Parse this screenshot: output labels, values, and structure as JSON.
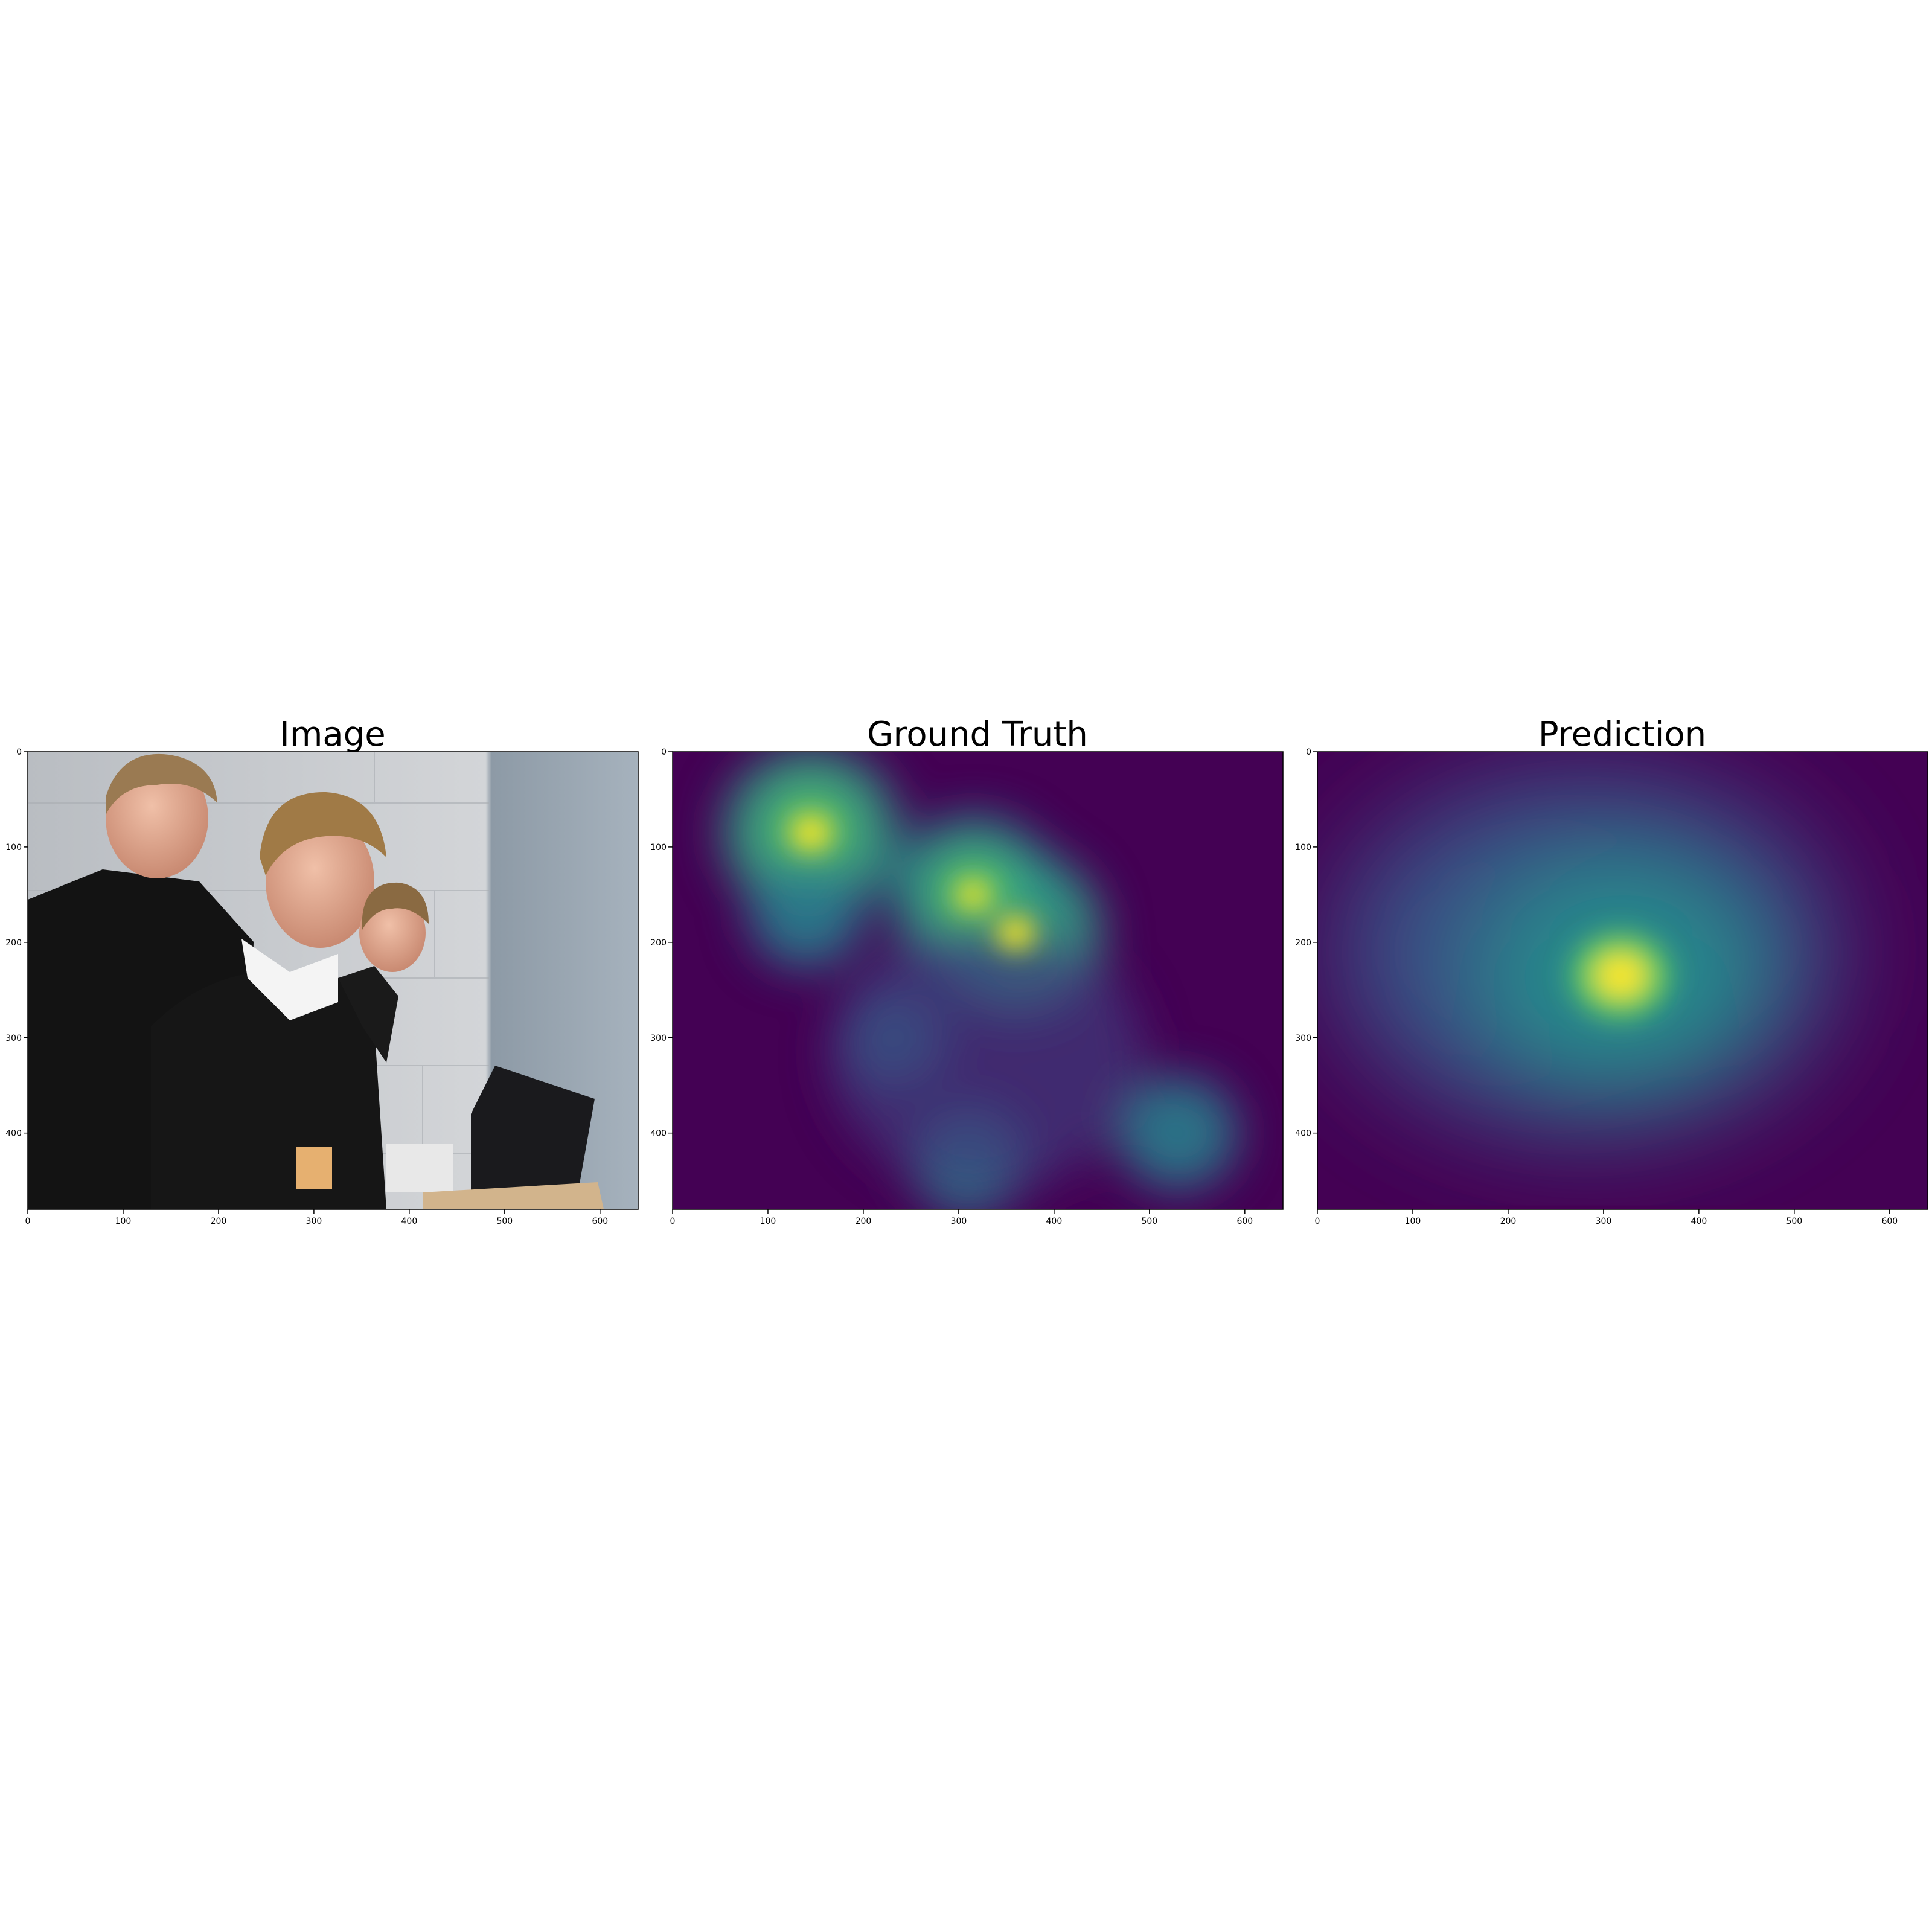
{
  "chart_data": [
    {
      "type": "image",
      "title": "Image",
      "x_ticks": [
        0,
        100,
        200,
        300,
        400,
        500,
        600
      ],
      "y_ticks": [
        0,
        100,
        200,
        300,
        400
      ],
      "xlim": [
        0,
        640
      ],
      "ylim": [
        480,
        0
      ],
      "colors": {
        "wall": "#c9cbce",
        "wall_dark": "#9aa6b0",
        "sweater": "#141414",
        "skin": "#e2a58e",
        "hair": "#9a7a52",
        "box": "#d2b48c",
        "monitor": "#1a1a1d"
      }
    },
    {
      "type": "heatmap",
      "title": "Ground Truth",
      "colormap": "viridis",
      "x_ticks": [
        0,
        100,
        200,
        300,
        400,
        500,
        600
      ],
      "y_ticks": [
        0,
        100,
        200,
        300,
        400
      ],
      "xlim": [
        0,
        640
      ],
      "ylim": [
        480,
        0
      ],
      "peaks": [
        {
          "x": 145,
          "y": 85,
          "intensity": 1.0
        },
        {
          "x": 360,
          "y": 190,
          "intensity": 0.95
        },
        {
          "x": 315,
          "y": 150,
          "intensity": 0.85
        },
        {
          "x": 140,
          "y": 170,
          "intensity": 0.3
        },
        {
          "x": 530,
          "y": 400,
          "intensity": 0.35
        },
        {
          "x": 310,
          "y": 430,
          "intensity": 0.3
        },
        {
          "x": 230,
          "y": 300,
          "intensity": 0.2
        }
      ]
    },
    {
      "type": "heatmap",
      "title": "Prediction",
      "colormap": "viridis",
      "x_ticks": [
        0,
        100,
        200,
        300,
        400,
        500,
        600
      ],
      "y_ticks": [
        0,
        100,
        200,
        300,
        400
      ],
      "xlim": [
        0,
        640
      ],
      "ylim": [
        480,
        0
      ],
      "peaks": [
        {
          "x": 318,
          "y": 235,
          "intensity": 1.0
        }
      ]
    }
  ]
}
